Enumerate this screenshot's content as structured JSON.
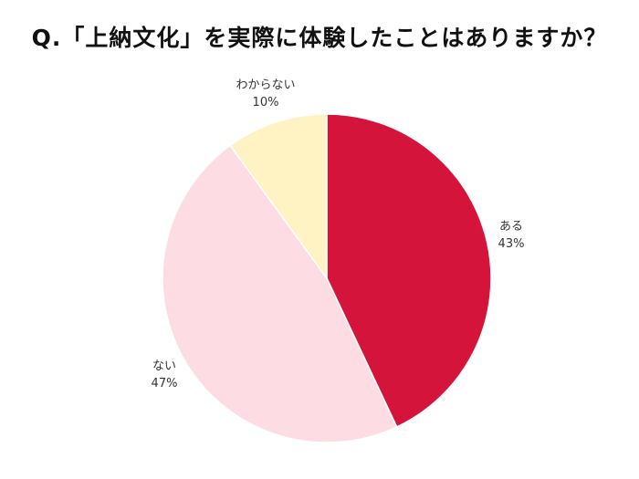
{
  "chart_data": {
    "type": "pie",
    "title": "Q.「上納文化」を実際に体験したことはありますか？",
    "start": "top",
    "direction": "clockwise",
    "slices": [
      {
        "label": "ある",
        "value": 43,
        "value_label": "43%",
        "color": "#D5143B"
      },
      {
        "label": "ない",
        "value": 47,
        "value_label": "47%",
        "color": "#FDDDE3"
      },
      {
        "label": "わからない",
        "value": 10,
        "value_label": "10%",
        "color": "#FFF3C4"
      }
    ]
  }
}
